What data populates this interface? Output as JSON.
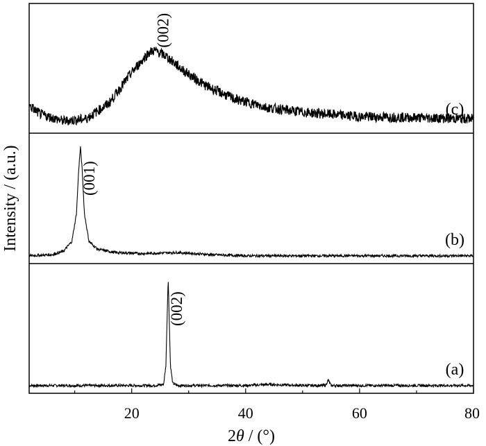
{
  "chart_data": {
    "type": "line",
    "xlabel_prefix": "2",
    "xlabel_symbol": "θ",
    "xlabel_suffix": " / (°)",
    "ylabel": "Intensity / (a.u.)",
    "xlim": [
      2,
      80
    ],
    "xticks": [
      20,
      40,
      60,
      80
    ],
    "grid": false,
    "panels": [
      {
        "name": "(a)",
        "label": "(a)",
        "peaks": [
          {
            "label": "(002)",
            "x": 26.4
          },
          {
            "label": "",
            "x": 54.5
          }
        ],
        "points": [
          [
            2,
            0.02
          ],
          [
            10,
            0.02
          ],
          [
            18,
            0.02
          ],
          [
            24,
            0.02
          ],
          [
            25.6,
            0.03
          ],
          [
            26.0,
            0.2
          ],
          [
            26.2,
            0.6
          ],
          [
            26.4,
            1.0
          ],
          [
            26.6,
            0.6
          ],
          [
            26.8,
            0.2
          ],
          [
            27.2,
            0.04
          ],
          [
            28,
            0.02
          ],
          [
            40,
            0.02
          ],
          [
            44,
            0.03
          ],
          [
            50,
            0.02
          ],
          [
            54.0,
            0.02
          ],
          [
            54.3,
            0.05
          ],
          [
            54.5,
            0.07
          ],
          [
            54.7,
            0.05
          ],
          [
            55.0,
            0.02
          ],
          [
            60,
            0.02
          ],
          [
            70,
            0.02
          ],
          [
            80,
            0.02
          ]
        ]
      },
      {
        "name": "(b)",
        "label": "(b)",
        "peaks": [
          {
            "label": "(001)",
            "x": 11.0
          }
        ],
        "points": [
          [
            2,
            0.02
          ],
          [
            6,
            0.03
          ],
          [
            8,
            0.06
          ],
          [
            9.5,
            0.15
          ],
          [
            10.3,
            0.4
          ],
          [
            10.7,
            0.8
          ],
          [
            11.0,
            1.0
          ],
          [
            11.3,
            0.8
          ],
          [
            11.7,
            0.4
          ],
          [
            12.5,
            0.15
          ],
          [
            14,
            0.08
          ],
          [
            17,
            0.05
          ],
          [
            22,
            0.04
          ],
          [
            28,
            0.05
          ],
          [
            34,
            0.03
          ],
          [
            40,
            0.02
          ],
          [
            50,
            0.02
          ],
          [
            60,
            0.02
          ],
          [
            70,
            0.02
          ],
          [
            80,
            0.02
          ]
        ]
      },
      {
        "name": "(c)",
        "label": "(c)",
        "peaks": [
          {
            "label": "(002)",
            "x": 24.0
          }
        ],
        "points": [
          [
            2,
            0.2
          ],
          [
            4,
            0.12
          ],
          [
            8,
            0.06
          ],
          [
            12,
            0.08
          ],
          [
            16,
            0.22
          ],
          [
            20,
            0.5
          ],
          [
            23,
            0.68
          ],
          [
            24,
            0.7
          ],
          [
            26,
            0.65
          ],
          [
            29,
            0.52
          ],
          [
            33,
            0.38
          ],
          [
            38,
            0.26
          ],
          [
            44,
            0.18
          ],
          [
            50,
            0.14
          ],
          [
            60,
            0.1
          ],
          [
            70,
            0.09
          ],
          [
            80,
            0.08
          ]
        ]
      }
    ]
  }
}
